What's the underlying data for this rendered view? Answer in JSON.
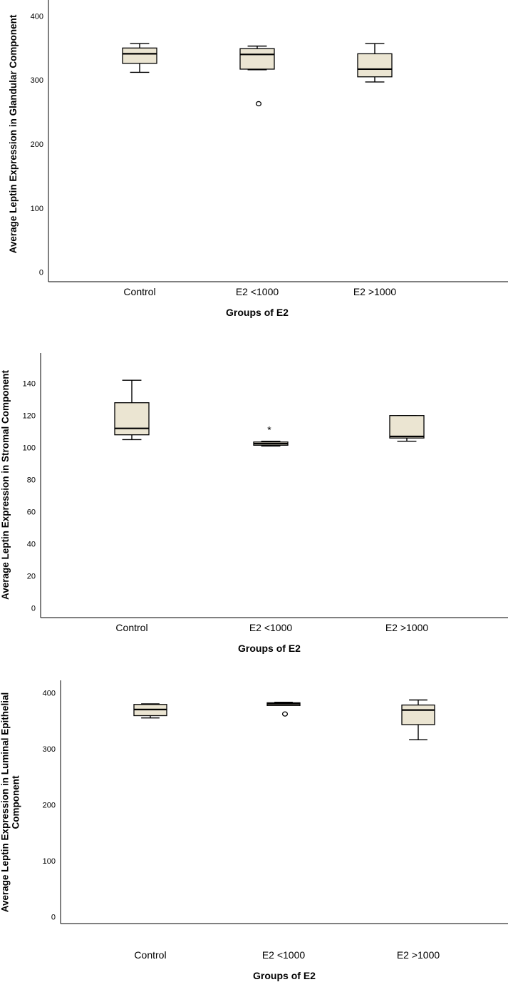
{
  "chart_data": [
    {
      "type": "boxplot",
      "title": "",
      "xlabel": "Groups of E2",
      "ylabel": [
        "Average Leptin Expression in Glandular Component"
      ],
      "categories": [
        "Control",
        "E2 <1000",
        "E2 >1000"
      ],
      "yticks": [
        "0",
        "100",
        "200",
        "300",
        "400"
      ],
      "ylim": [
        -15,
        425
      ],
      "box_color": "#ebe5d2",
      "boxes": [
        {
          "min": 312,
          "q1": 326,
          "median": 341,
          "q3": 350,
          "max": 357,
          "outliers": []
        },
        {
          "min": 316,
          "q1": 317,
          "median": 340,
          "q3": 349,
          "max": 353,
          "outliers": [
            {
              "value": 263,
              "marker": "circle"
            }
          ]
        },
        {
          "min": 297,
          "q1": 305,
          "median": 317,
          "q3": 341,
          "max": 357,
          "outliers": []
        }
      ]
    },
    {
      "type": "boxplot",
      "title": "",
      "xlabel": "Groups of E2",
      "ylabel": [
        "Average Leptin Expression in Stromal Component"
      ],
      "categories": [
        "Control",
        "E2 <1000",
        "E2 >1000"
      ],
      "yticks": [
        "0",
        "20",
        "40",
        "60",
        "80",
        "100",
        "120",
        "140"
      ],
      "ylim": [
        -6,
        159
      ],
      "box_color": "#ebe5d2",
      "boxes": [
        {
          "min": 105,
          "q1": 108,
          "median": 112,
          "q3": 128,
          "max": 142,
          "outliers": []
        },
        {
          "min": 101,
          "q1": 101.5,
          "median": 102.5,
          "q3": 103.5,
          "max": 104,
          "outliers": [
            {
              "value": 112,
              "marker": "star"
            }
          ]
        },
        {
          "min": 104,
          "q1": 106,
          "median": 107,
          "q3": 120,
          "max": 120,
          "outliers": []
        }
      ]
    },
    {
      "type": "boxplot",
      "title": "",
      "xlabel": "Groups of E2",
      "ylabel": [
        "Average Leptin Expression in Luminal Epithelial",
        "Component"
      ],
      "categories": [
        "Control",
        "E2 <1000",
        "E2 >1000"
      ],
      "yticks": [
        "0",
        "100",
        "200",
        "300",
        "400"
      ],
      "ylim": [
        -12,
        422
      ],
      "box_color": "#ebe5d2",
      "boxes": [
        {
          "min": 355,
          "q1": 359,
          "median": 370,
          "q3": 379,
          "max": 380,
          "outliers": []
        },
        {
          "min": 377,
          "q1": 377,
          "median": 380,
          "q3": 382,
          "max": 383,
          "outliers": [
            {
              "value": 362,
              "marker": "circle"
            }
          ]
        },
        {
          "min": 316,
          "q1": 343,
          "median": 369,
          "q3": 378,
          "max": 387,
          "outliers": []
        }
      ]
    }
  ]
}
